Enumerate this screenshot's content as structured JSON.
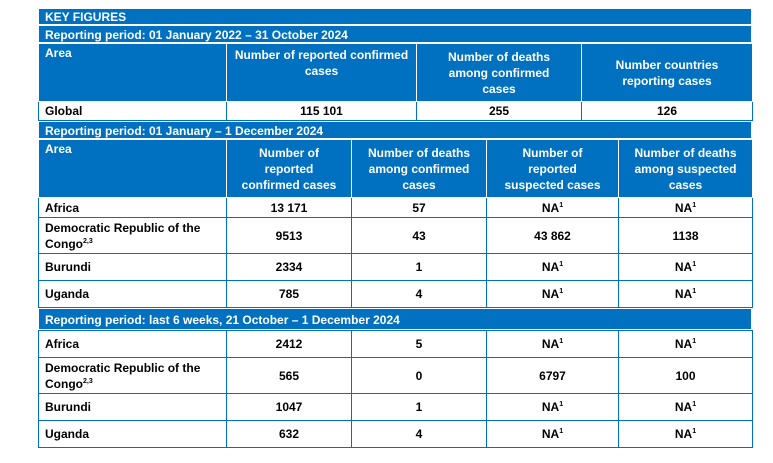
{
  "title": "KEY FIGURES",
  "section1": {
    "period": "Reporting period: 01 January 2022 – 31 October 2024",
    "headers": [
      "Area",
      "Number of reported confirmed cases",
      "Number of deaths among confirmed cases",
      "Number countries reporting cases"
    ],
    "row": {
      "area": "Global",
      "values": [
        "115 101",
        "255",
        "126"
      ]
    }
  },
  "section2": {
    "period": "Reporting period: 01 January – 1 December 2024",
    "headers": [
      "Area",
      "Number of reported confirmed cases",
      "Number of deaths among confirmed cases",
      "Number of reported suspected cases",
      "Number of deaths among suspected cases"
    ],
    "rows": [
      {
        "area": "Africa",
        "sup": "",
        "values": [
          "13 171",
          "57",
          "NA",
          "NA"
        ],
        "sups": [
          "",
          "",
          "1",
          "1"
        ]
      },
      {
        "area": "Democratic Republic of the Congo",
        "sup": "2,3",
        "values": [
          "9513",
          "43",
          "43 862",
          "1138"
        ],
        "sups": [
          "",
          "",
          "",
          ""
        ]
      },
      {
        "area": "Burundi",
        "sup": "",
        "values": [
          "2334",
          "1",
          "NA",
          "NA"
        ],
        "sups": [
          "",
          "",
          "1",
          "1"
        ]
      },
      {
        "area": "Uganda",
        "sup": "",
        "values": [
          "785",
          "4",
          "NA",
          "NA"
        ],
        "sups": [
          "",
          "",
          "1",
          "1"
        ]
      }
    ]
  },
  "section3": {
    "period": "Reporting period: last 6 weeks, 21 October – 1 December 2024",
    "rows": [
      {
        "area": "Africa",
        "sup": "",
        "values": [
          "2412",
          "5",
          "NA",
          "NA"
        ],
        "sups": [
          "",
          "",
          "1",
          "1"
        ]
      },
      {
        "area": "Democratic Republic of the Congo",
        "sup": "2,3",
        "values": [
          "565",
          "0",
          "6797",
          "100"
        ],
        "sups": [
          "",
          "",
          "",
          ""
        ]
      },
      {
        "area": "Burundi",
        "sup": "",
        "values": [
          "1047",
          "1",
          "NA",
          "NA"
        ],
        "sups": [
          "",
          "",
          "1",
          "1"
        ]
      },
      {
        "area": "Uganda",
        "sup": "",
        "values": [
          "632",
          "4",
          "NA",
          "NA"
        ],
        "sups": [
          "",
          "",
          "1",
          "1"
        ]
      }
    ]
  },
  "colors": {
    "header_bg": "#0070c0",
    "header_text": "#ffffff",
    "border": "#0070c0"
  }
}
